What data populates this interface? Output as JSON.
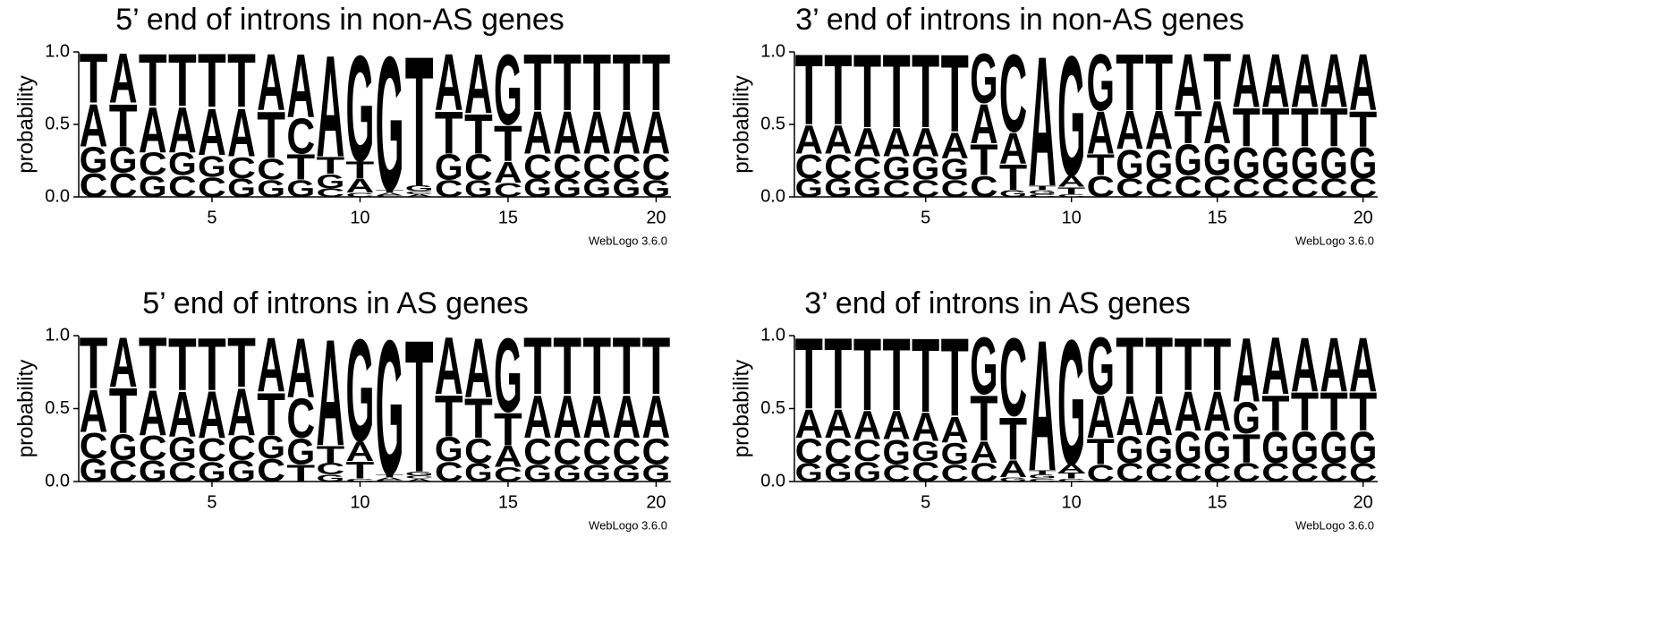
{
  "chart_data": [
    {
      "type": "logo",
      "title": "5’ end of introns in non-AS genes",
      "ylabel": "probability",
      "credit": "WebLogo 3.6.0",
      "x": [
        1,
        2,
        3,
        4,
        5,
        6,
        7,
        8,
        9,
        10,
        11,
        12,
        13,
        14,
        15,
        16,
        17,
        18,
        19,
        20
      ],
      "xlim": [
        0.5,
        20.5
      ],
      "xticks": [
        5,
        10,
        15,
        20
      ],
      "ylim": [
        0,
        1
      ],
      "yticks": [
        {
          "value": 0,
          "label": "0.0"
        },
        {
          "value": 0.5,
          "label": "0.5"
        },
        {
          "value": 1,
          "label": "1.0"
        }
      ],
      "series": [
        {
          "name": "A",
          "color": "#f0921e",
          "values": [
            0.3,
            0.35,
            0.32,
            0.32,
            0.33,
            0.34,
            0.4,
            0.45,
            0.72,
            0.1,
            0.02,
            0.02,
            0.4,
            0.42,
            0.15,
            0.3,
            0.3,
            0.3,
            0.3,
            0.3
          ]
        },
        {
          "name": "C",
          "color": "#1f1fd6",
          "values": [
            0.17,
            0.17,
            0.16,
            0.15,
            0.14,
            0.15,
            0.15,
            0.25,
            0.06,
            0.03,
            0.01,
            0.02,
            0.12,
            0.18,
            0.1,
            0.17,
            0.17,
            0.17,
            0.17,
            0.18
          ]
        },
        {
          "name": "G",
          "color": "#1f1fd6",
          "values": [
            0.18,
            0.18,
            0.15,
            0.16,
            0.15,
            0.13,
            0.12,
            0.12,
            0.1,
            0.75,
            0.95,
            0.04,
            0.18,
            0.12,
            0.5,
            0.13,
            0.13,
            0.13,
            0.13,
            0.12
          ]
        },
        {
          "name": "T",
          "color": "#f0921e",
          "values": [
            0.35,
            0.3,
            0.37,
            0.37,
            0.38,
            0.38,
            0.33,
            0.18,
            0.12,
            0.12,
            0.02,
            0.92,
            0.3,
            0.28,
            0.25,
            0.4,
            0.4,
            0.4,
            0.4,
            0.4
          ]
        }
      ]
    },
    {
      "type": "logo",
      "title": "3’ end of introns in non-AS genes",
      "ylabel": "probability",
      "credit": "WebLogo 3.6.0",
      "x": [
        1,
        2,
        3,
        4,
        5,
        6,
        7,
        8,
        9,
        10,
        11,
        12,
        13,
        14,
        15,
        16,
        17,
        18,
        19,
        20
      ],
      "xlim": [
        0.5,
        20.5
      ],
      "xticks": [
        5,
        10,
        15,
        20
      ],
      "ylim": [
        0,
        1
      ],
      "yticks": [
        {
          "value": 0,
          "label": "0.0"
        },
        {
          "value": 0.5,
          "label": "0.5"
        },
        {
          "value": 1,
          "label": "1.0"
        }
      ],
      "series": [
        {
          "name": "A",
          "color": "#f0921e",
          "values": [
            0.2,
            0.2,
            0.2,
            0.2,
            0.2,
            0.18,
            0.28,
            0.22,
            0.92,
            0.08,
            0.3,
            0.27,
            0.27,
            0.4,
            0.3,
            0.38,
            0.38,
            0.38,
            0.38,
            0.4
          ]
        },
        {
          "name": "C",
          "color": "#1f1fd6",
          "values": [
            0.17,
            0.17,
            0.15,
            0.12,
            0.12,
            0.12,
            0.15,
            0.55,
            0.02,
            0.02,
            0.15,
            0.13,
            0.13,
            0.15,
            0.15,
            0.13,
            0.13,
            0.13,
            0.13,
            0.13
          ]
        },
        {
          "name": "G",
          "color": "#1f1fd6",
          "values": [
            0.13,
            0.13,
            0.13,
            0.16,
            0.16,
            0.15,
            0.35,
            0.05,
            0.03,
            0.85,
            0.4,
            0.2,
            0.2,
            0.22,
            0.22,
            0.22,
            0.22,
            0.22,
            0.22,
            0.22
          ]
        },
        {
          "name": "T",
          "color": "#f0921e",
          "values": [
            0.5,
            0.5,
            0.52,
            0.52,
            0.52,
            0.55,
            0.22,
            0.18,
            0.03,
            0.05,
            0.15,
            0.4,
            0.4,
            0.23,
            0.33,
            0.27,
            0.27,
            0.27,
            0.27,
            0.25
          ]
        }
      ]
    },
    {
      "type": "logo",
      "title": "5’ end of introns in AS genes",
      "ylabel": "probability",
      "credit": "WebLogo 3.6.0",
      "x": [
        1,
        2,
        3,
        4,
        5,
        6,
        7,
        8,
        9,
        10,
        11,
        12,
        13,
        14,
        15,
        16,
        17,
        18,
        19,
        20
      ],
      "xlim": [
        0.5,
        20.5
      ],
      "xticks": [
        5,
        10,
        15,
        20
      ],
      "ylim": [
        0,
        1
      ],
      "yticks": [
        {
          "value": 0,
          "label": "0.0"
        },
        {
          "value": 0.5,
          "label": "0.5"
        },
        {
          "value": 1,
          "label": "1.0"
        }
      ],
      "series": [
        {
          "name": "A",
          "color": "#f0921e",
          "values": [
            0.3,
            0.35,
            0.32,
            0.32,
            0.33,
            0.33,
            0.38,
            0.42,
            0.75,
            0.14,
            0.02,
            0.02,
            0.4,
            0.42,
            0.15,
            0.3,
            0.3,
            0.3,
            0.3,
            0.3
          ]
        },
        {
          "name": "C",
          "color": "#1f1fd6",
          "values": [
            0.18,
            0.15,
            0.17,
            0.14,
            0.16,
            0.17,
            0.16,
            0.28,
            0.08,
            0.02,
            0.01,
            0.02,
            0.14,
            0.17,
            0.1,
            0.18,
            0.18,
            0.18,
            0.18,
            0.18
          ]
        },
        {
          "name": "G",
          "color": "#1f1fd6",
          "values": [
            0.16,
            0.18,
            0.15,
            0.17,
            0.14,
            0.15,
            0.16,
            0.18,
            0.05,
            0.72,
            0.95,
            0.03,
            0.17,
            0.13,
            0.52,
            0.12,
            0.12,
            0.12,
            0.12,
            0.12
          ]
        },
        {
          "name": "T",
          "color": "#f0921e",
          "values": [
            0.36,
            0.32,
            0.36,
            0.37,
            0.37,
            0.35,
            0.3,
            0.12,
            0.12,
            0.12,
            0.02,
            0.93,
            0.29,
            0.28,
            0.23,
            0.4,
            0.4,
            0.4,
            0.4,
            0.4
          ]
        }
      ]
    },
    {
      "type": "logo",
      "title": "3’ end of introns in AS genes",
      "ylabel": "probability",
      "credit": "WebLogo 3.6.0",
      "x": [
        1,
        2,
        3,
        4,
        5,
        6,
        7,
        8,
        9,
        10,
        11,
        12,
        13,
        14,
        15,
        16,
        17,
        18,
        19,
        20
      ],
      "xlim": [
        0.5,
        20.5
      ],
      "xticks": [
        5,
        10,
        15,
        20
      ],
      "ylim": [
        0,
        1
      ],
      "yticks": [
        {
          "value": 0,
          "label": "0.0"
        },
        {
          "value": 0.5,
          "label": "0.5"
        },
        {
          "value": 1,
          "label": "1.0"
        }
      ],
      "series": [
        {
          "name": "A",
          "color": "#f0921e",
          "values": [
            0.2,
            0.2,
            0.2,
            0.2,
            0.2,
            0.18,
            0.15,
            0.12,
            0.92,
            0.06,
            0.3,
            0.28,
            0.28,
            0.28,
            0.28,
            0.45,
            0.4,
            0.38,
            0.38,
            0.38
          ]
        },
        {
          "name": "C",
          "color": "#1f1fd6",
          "values": [
            0.17,
            0.17,
            0.15,
            0.12,
            0.14,
            0.12,
            0.13,
            0.55,
            0.02,
            0.02,
            0.12,
            0.13,
            0.13,
            0.13,
            0.13,
            0.13,
            0.13,
            0.13,
            0.13,
            0.13
          ]
        },
        {
          "name": "G",
          "color": "#1f1fd6",
          "values": [
            0.13,
            0.13,
            0.14,
            0.17,
            0.14,
            0.15,
            0.4,
            0.03,
            0.03,
            0.88,
            0.4,
            0.19,
            0.19,
            0.22,
            0.22,
            0.22,
            0.22,
            0.22,
            0.22,
            0.22
          ]
        },
        {
          "name": "T",
          "color": "#f0921e",
          "values": [
            0.5,
            0.5,
            0.51,
            0.51,
            0.52,
            0.55,
            0.32,
            0.3,
            0.03,
            0.04,
            0.18,
            0.4,
            0.4,
            0.37,
            0.37,
            0.2,
            0.25,
            0.27,
            0.27,
            0.27
          ]
        }
      ]
    }
  ]
}
